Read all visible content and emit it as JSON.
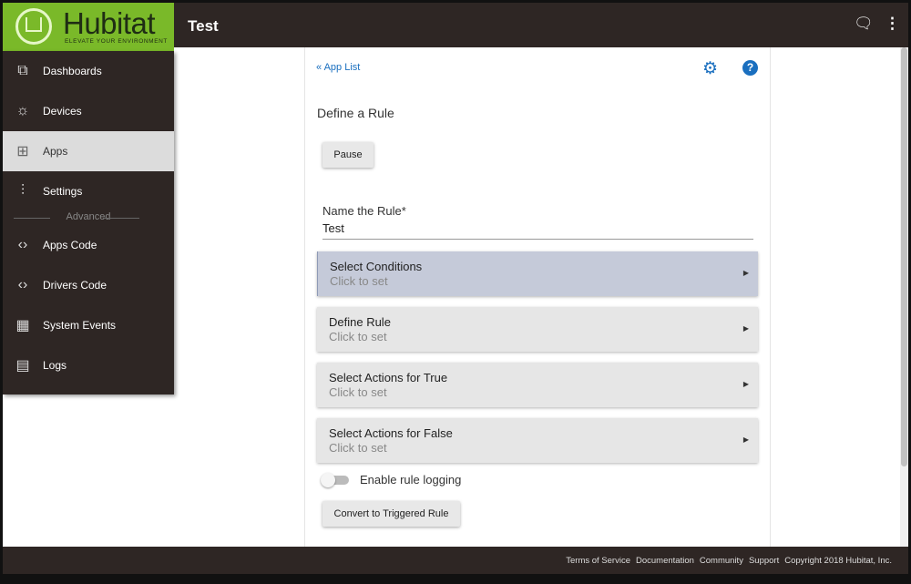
{
  "brand": {
    "name": "Hubitat",
    "tagline": "ELEVATE YOUR ENVIRONMENT"
  },
  "header": {
    "title": "Test",
    "icons": [
      "chat-icon",
      "more-vert-icon"
    ]
  },
  "sidebar": {
    "items": [
      {
        "label": "Dashboards",
        "icon": "dashboards-icon"
      },
      {
        "label": "Devices",
        "icon": "bulb-icon"
      },
      {
        "label": "Apps",
        "icon": "apps-icon",
        "active": true
      },
      {
        "label": "Settings",
        "icon": "sliders-icon"
      }
    ],
    "section": "Advanced",
    "advanced": [
      {
        "label": "Apps Code",
        "icon": "code-icon"
      },
      {
        "label": "Drivers Code",
        "icon": "code-icon"
      },
      {
        "label": "System Events",
        "icon": "calendar-icon"
      },
      {
        "label": "Logs",
        "icon": "document-icon"
      }
    ]
  },
  "main": {
    "back": "« App List",
    "heading": "Define a Rule",
    "pause": "Pause",
    "name_label": "Name the Rule*",
    "name_value": "Test",
    "sections": [
      {
        "title": "Select Conditions",
        "sub": "Click to set"
      },
      {
        "title": "Define Rule",
        "sub": "Click to set"
      },
      {
        "title": "Select Actions for True",
        "sub": "Click to set"
      },
      {
        "title": "Select Actions for False",
        "sub": "Click to set"
      }
    ],
    "logging": "Enable rule logging",
    "logging_on": false,
    "convert": "Convert to Triggered Rule"
  },
  "footer": [
    "Terms of Service",
    "Documentation",
    "Community",
    "Support",
    "Copyright 2018 Hubitat, Inc."
  ],
  "colors": {
    "brand": "#7ab929",
    "dark": "#2e2624",
    "link": "#1a6fbf"
  }
}
